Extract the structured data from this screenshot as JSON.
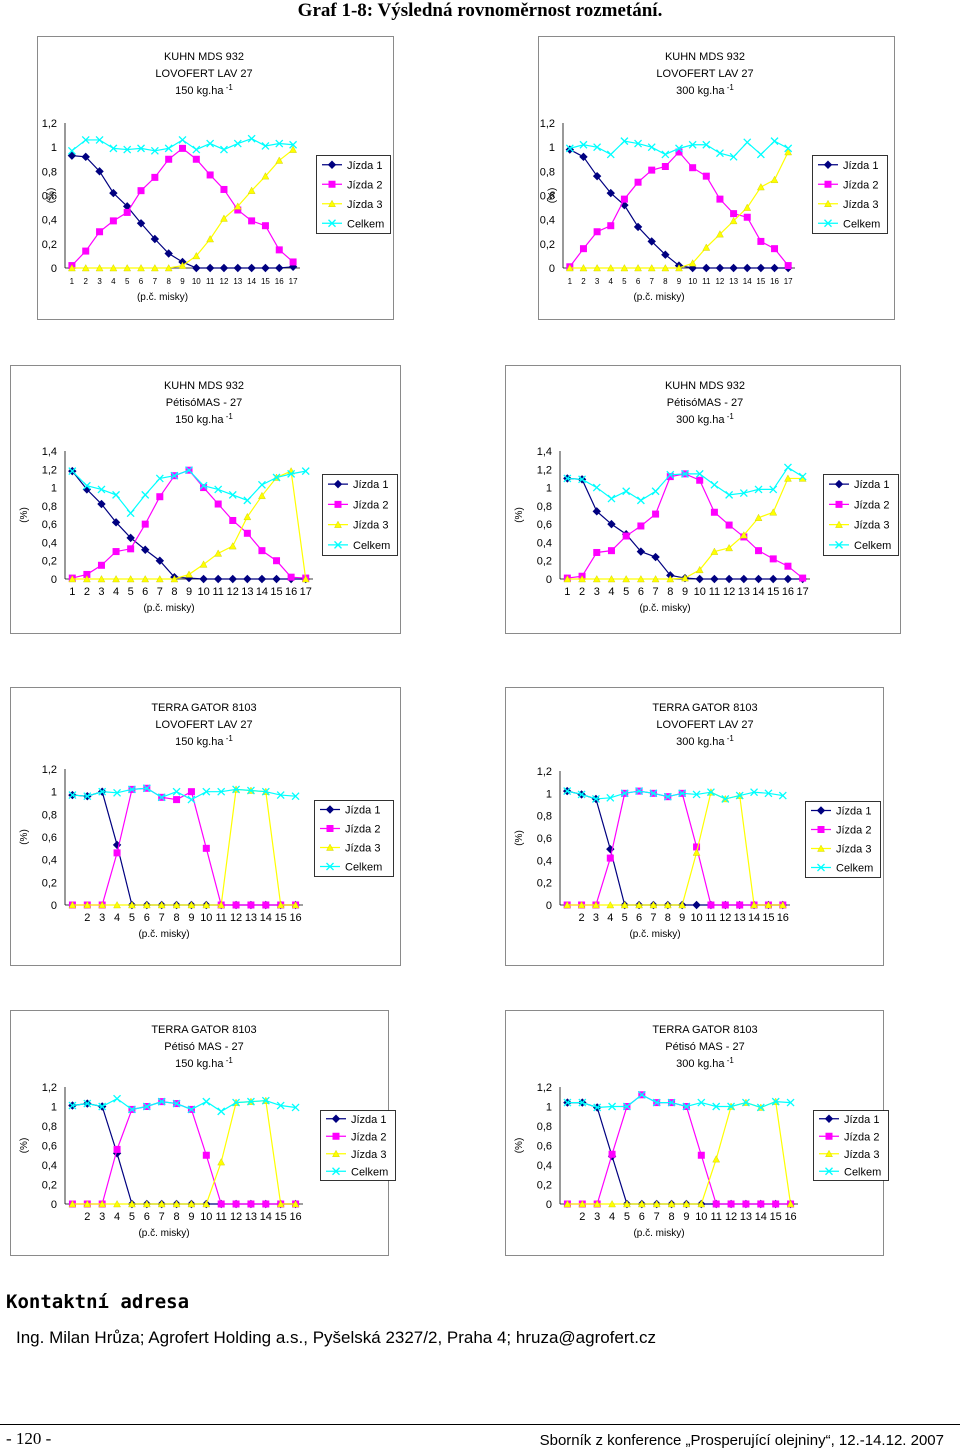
{
  "page_title": "Graf 1-8: Výsledná rovnoměrnost rozmetání.",
  "contact": {
    "heading": "Kontaktní adresa",
    "text": "Ing. Milan Hrůza; Agrofert Holding a.s., Pyšelská 2327/2, Praha 4; hruza@agrofert.cz"
  },
  "footer": {
    "page_number": "- 120 -",
    "conference": "Sborník z konference „Prosperující olejniny“, 12.-14.12. 2007"
  },
  "colors": {
    "Jízda 1": "#000080",
    "Jízda 2": "#ff00ff",
    "Jízda 3": "#ffff00",
    "Celkem": "#00ffff"
  },
  "chart_data": [
    {
      "type": "line",
      "title_lines": [
        "KUHN MDS 932",
        "LOVOFERT LAV  27",
        "150 kg.ha"
      ],
      "title_sup": "-1",
      "ylabel": "(%)",
      "xlabel": "(p.č. misky)",
      "ylim": [
        0,
        1.2
      ],
      "yticks": [
        "0",
        "0,2",
        "0,4",
        "0,6",
        "0,8",
        "1",
        "1,2"
      ],
      "x": [
        "1",
        "2",
        "3",
        "4",
        "5",
        "6",
        "7",
        "8",
        "9",
        "10",
        "11",
        "12",
        "13",
        "14",
        "15",
        "16",
        "17"
      ],
      "legend": [
        "Jízda 1",
        "Jízda 2",
        "Jízda 3",
        "Celkem"
      ],
      "series": [
        {
          "name": "Jízda 1",
          "values": [
            0.93,
            0.92,
            0.8,
            0.62,
            0.51,
            0.37,
            0.24,
            0.12,
            0.05,
            0,
            0,
            0,
            0,
            0,
            0,
            0,
            0.01
          ]
        },
        {
          "name": "Jízda 2",
          "values": [
            0.02,
            0.14,
            0.3,
            0.39,
            0.46,
            0.64,
            0.75,
            0.9,
            0.99,
            0.9,
            0.77,
            0.65,
            0.48,
            0.39,
            0.35,
            0.15,
            0.05
          ]
        },
        {
          "name": "Jízda 3",
          "values": [
            0,
            0,
            0,
            0,
            0,
            0,
            0,
            0,
            0.02,
            0.1,
            0.24,
            0.41,
            0.51,
            0.64,
            0.76,
            0.89,
            0.98
          ]
        },
        {
          "name": "Celkem",
          "values": [
            0.97,
            1.06,
            1.06,
            0.99,
            0.98,
            0.99,
            0.97,
            0.99,
            1.06,
            0.98,
            1.03,
            0.98,
            1.03,
            1.07,
            1.01,
            1.03,
            1.02
          ]
        }
      ]
    },
    {
      "type": "line",
      "title_lines": [
        "KUHN MDS 932",
        "LOVOFERT LAV  27",
        "300 kg.ha"
      ],
      "title_sup": "-1",
      "ylabel": "(%)",
      "xlabel": "(p.č. misky)",
      "ylim": [
        0,
        1.2
      ],
      "yticks": [
        "0",
        "0,2",
        "0,4",
        "0,6",
        "0,8",
        "1",
        "1,2"
      ],
      "x": [
        "1",
        "2",
        "3",
        "4",
        "5",
        "6",
        "7",
        "8",
        "9",
        "10",
        "11",
        "12",
        "13",
        "14",
        "15",
        "16",
        "17"
      ],
      "legend": [
        "Jízda 1",
        "Jízda 2",
        "Jízda 3",
        "Celkem"
      ],
      "series": [
        {
          "name": "Jízda 1",
          "values": [
            0.98,
            0.92,
            0.76,
            0.62,
            0.52,
            0.34,
            0.22,
            0.11,
            0.02,
            0,
            0,
            0,
            0,
            0,
            0,
            0,
            0
          ]
        },
        {
          "name": "Jízda 2",
          "values": [
            0.01,
            0.16,
            0.3,
            0.35,
            0.57,
            0.71,
            0.81,
            0.84,
            0.96,
            0.83,
            0.76,
            0.57,
            0.45,
            0.42,
            0.22,
            0.16,
            0.02
          ]
        },
        {
          "name": "Jízda 3",
          "values": [
            0,
            0,
            0,
            0,
            0,
            0,
            0,
            0,
            0,
            0.04,
            0.17,
            0.28,
            0.39,
            0.5,
            0.67,
            0.73,
            0.96
          ]
        },
        {
          "name": "Celkem",
          "values": [
            0.99,
            1.02,
            1.0,
            0.94,
            1.05,
            1.03,
            1.0,
            0.94,
            0.99,
            1.02,
            1.02,
            0.95,
            0.92,
            1.04,
            0.94,
            1.05,
            0.99
          ]
        }
      ]
    },
    {
      "type": "line",
      "title_lines": [
        "KUHN MDS 932",
        "PétisóMAS - 27",
        "150 kg.ha"
      ],
      "title_sup": "-1",
      "ylabel": "(%)",
      "xlabel": "(p.č. misky)",
      "ylim": [
        0,
        1.4
      ],
      "yticks": [
        "0",
        "0,2",
        "0,4",
        "0,6",
        "0,8",
        "1",
        "1,2",
        "1,4"
      ],
      "x": [
        "1",
        "2",
        "3",
        "4",
        "5",
        "6",
        "7",
        "8",
        "9",
        "10",
        "11",
        "12",
        "13",
        "14",
        "15",
        "16",
        "17"
      ],
      "legend": [
        "Jízda 1",
        "Jízda 2",
        "Jízda 3",
        "Celkem"
      ],
      "series": [
        {
          "name": "Jízda 1",
          "values": [
            1.18,
            0.98,
            0.82,
            0.62,
            0.45,
            0.32,
            0.2,
            0.02,
            0.01,
            0,
            0,
            0,
            0,
            0,
            0,
            0,
            0
          ]
        },
        {
          "name": "Jízda 2",
          "values": [
            0.01,
            0.05,
            0.15,
            0.3,
            0.33,
            0.6,
            0.9,
            1.13,
            1.19,
            1.0,
            0.82,
            0.64,
            0.5,
            0.31,
            0.2,
            0.02,
            0.01
          ]
        },
        {
          "name": "Jízda 3",
          "values": [
            0,
            0,
            0,
            0,
            0,
            0,
            0,
            0,
            0.05,
            0.16,
            0.28,
            0.36,
            0.68,
            0.91,
            1.11,
            1.18,
            0
          ]
        },
        {
          "name": "Celkem",
          "values": [
            1.18,
            1.02,
            0.98,
            0.92,
            0.72,
            0.92,
            1.1,
            1.13,
            1.19,
            1.02,
            0.98,
            0.92,
            0.86,
            1.03,
            1.11,
            1.15,
            1.18
          ]
        }
      ]
    },
    {
      "type": "line",
      "title_lines": [
        "KUHN MDS 932",
        "PétisóMAS - 27",
        "300 kg.ha"
      ],
      "title_sup": "-1",
      "ylabel": "(%)",
      "xlabel": "(p.č. misky)",
      "ylim": [
        0,
        1.4
      ],
      "yticks": [
        "0",
        "0,2",
        "0,4",
        "0,6",
        "0,8",
        "1",
        "1,2",
        "1,4"
      ],
      "x": [
        "1",
        "2",
        "3",
        "4",
        "5",
        "6",
        "7",
        "8",
        "9",
        "10",
        "11",
        "12",
        "13",
        "14",
        "15",
        "16",
        "17"
      ],
      "legend": [
        "Jízda 1",
        "Jízda 2",
        "Jízda 3",
        "Celkem"
      ],
      "series": [
        {
          "name": "Jízda 1",
          "values": [
            1.1,
            1.09,
            0.74,
            0.6,
            0.49,
            0.3,
            0.24,
            0.04,
            0.01,
            0,
            0,
            0,
            0,
            0,
            0,
            0,
            0
          ]
        },
        {
          "name": "Jízda 2",
          "values": [
            0.01,
            0.03,
            0.29,
            0.31,
            0.47,
            0.58,
            0.71,
            1.12,
            1.15,
            1.08,
            0.73,
            0.59,
            0.46,
            0.31,
            0.22,
            0.14,
            0.01
          ]
        },
        {
          "name": "Jízda 3",
          "values": [
            0,
            0,
            0,
            0,
            0,
            0,
            0,
            0,
            0.01,
            0.1,
            0.3,
            0.34,
            0.48,
            0.67,
            0.73,
            1.1,
            1.1
          ]
        },
        {
          "name": "Celkem",
          "values": [
            1.1,
            1.09,
            1.0,
            0.88,
            0.96,
            0.86,
            0.96,
            1.14,
            1.15,
            1.15,
            1.03,
            0.92,
            0.94,
            0.98,
            0.98,
            1.22,
            1.12
          ]
        }
      ]
    },
    {
      "type": "line",
      "title_lines": [
        "TERRA GATOR 8103",
        "LOVOFERT LAV 27",
        "150 kg.ha"
      ],
      "title_sup": "-1",
      "ylabel": "(%)",
      "xlabel": "(p.č. misky)",
      "ylim": [
        0,
        1.2
      ],
      "yticks": [
        "0",
        "0,2",
        "0,4",
        "0,6",
        "0,8",
        "1",
        "1,2"
      ],
      "x": [
        "1",
        "2",
        "3",
        "4",
        "5",
        "6",
        "7",
        "8",
        "9",
        "10",
        "11",
        "12",
        "13",
        "14",
        "15",
        "16"
      ],
      "xtick_labels": [
        "",
        "2",
        "3",
        "4",
        "5",
        "6",
        "7",
        "8",
        "9",
        "10",
        "11",
        "12",
        "13",
        "14",
        "15",
        "16"
      ],
      "legend": [
        "Jízda 1",
        "Jízda 2",
        "Jízda 3",
        "Celkem"
      ],
      "series": [
        {
          "name": "Jízda 1",
          "values": [
            0.97,
            0.96,
            1.0,
            0.53,
            0,
            0,
            0,
            0,
            0,
            0,
            0,
            0,
            0,
            0,
            0,
            0
          ]
        },
        {
          "name": "Jízda 2",
          "values": [
            0,
            0,
            0,
            0.46,
            1.02,
            1.03,
            0.95,
            0.93,
            1.0,
            0.5,
            0,
            0,
            0,
            0,
            0,
            0
          ]
        },
        {
          "name": "Jízda 3",
          "values": [
            0,
            0,
            0,
            0,
            0,
            0,
            0,
            0,
            0,
            0,
            0,
            1.02,
            1.01,
            1.0,
            0,
            0
          ]
        },
        {
          "name": "Celkem",
          "values": [
            0.97,
            0.96,
            1.0,
            0.99,
            1.02,
            1.03,
            0.95,
            1.0,
            0.93,
            1.0,
            1.0,
            1.02,
            1.01,
            1.0,
            0.97,
            0.96
          ]
        }
      ]
    },
    {
      "type": "line",
      "title_lines": [
        "TERRA GATOR 8103",
        "LOVOFERT LAV 27",
        "300 kg.ha"
      ],
      "title_sup": "-1",
      "ylabel": "(%)",
      "xlabel": "(p.č. misky)",
      "ylim": [
        0,
        1.2
      ],
      "yticks": [
        "0",
        "0,2",
        "0,4",
        "0,6",
        "0,8",
        "1",
        "1,2"
      ],
      "x": [
        "1",
        "2",
        "3",
        "4",
        "5",
        "6",
        "7",
        "8",
        "9",
        "10",
        "11",
        "12",
        "13",
        "14",
        "15",
        "16"
      ],
      "xtick_labels": [
        "",
        "2",
        "3",
        "4",
        "5",
        "6",
        "7",
        "8",
        "9",
        "10",
        "11",
        "12",
        "13",
        "14",
        "15",
        "16"
      ],
      "legend": [
        "Jízda 1",
        "Jízda 2",
        "Jízda 3",
        "Celkem"
      ],
      "series": [
        {
          "name": "Jízda 1",
          "values": [
            1.02,
            0.99,
            0.95,
            0.5,
            0,
            0,
            0,
            0,
            0,
            0,
            0,
            0,
            0,
            0,
            0,
            0
          ]
        },
        {
          "name": "Jízda 2",
          "values": [
            0,
            0,
            0,
            0.42,
            1.0,
            1.02,
            1.0,
            0.97,
            1.0,
            0.52,
            0,
            0,
            0,
            0,
            0,
            0
          ]
        },
        {
          "name": "Jízda 3",
          "values": [
            0,
            0,
            0,
            0,
            0,
            0,
            0,
            0,
            0,
            0.47,
            1.01,
            0.95,
            0.98,
            0,
            0,
            0
          ]
        },
        {
          "name": "Celkem",
          "values": [
            1.02,
            0.99,
            0.95,
            0.96,
            1.0,
            1.02,
            1.0,
            0.97,
            1.0,
            0.99,
            1.01,
            0.95,
            0.98,
            1.01,
            1.0,
            0.98
          ]
        }
      ]
    },
    {
      "type": "line",
      "title_lines": [
        "TERRA GATOR 8103",
        "Pétisó MAS - 27",
        "150 kg.ha"
      ],
      "title_sup": "-1",
      "ylabel": "(%)",
      "xlabel": "(p.č. misky)",
      "ylim": [
        0,
        1.2
      ],
      "yticks": [
        "0",
        "0,2",
        "0,4",
        "0,6",
        "0,8",
        "1",
        "1,2"
      ],
      "x": [
        "1",
        "2",
        "3",
        "4",
        "5",
        "6",
        "7",
        "8",
        "9",
        "10",
        "11",
        "12",
        "13",
        "14",
        "15",
        "16"
      ],
      "xtick_labels": [
        "",
        "2",
        "3",
        "4",
        "5",
        "6",
        "7",
        "8",
        "9",
        "10",
        "11",
        "12",
        "13",
        "14",
        "15",
        "16"
      ],
      "legend": [
        "Jízda 1",
        "Jízda 2",
        "Jízda 3",
        "Celkem"
      ],
      "series": [
        {
          "name": "Jízda 1",
          "values": [
            1.01,
            1.03,
            1.0,
            0.52,
            0,
            0,
            0,
            0,
            0,
            0,
            0,
            0,
            0,
            0,
            0,
            0
          ]
        },
        {
          "name": "Jízda 2",
          "values": [
            0,
            0,
            0,
            0.56,
            0.97,
            1.0,
            1.05,
            1.03,
            0.97,
            0.5,
            0,
            0,
            0,
            0,
            0,
            0
          ]
        },
        {
          "name": "Jízda 3",
          "values": [
            0,
            0,
            0,
            0,
            0,
            0,
            0,
            0,
            0,
            0,
            0.43,
            1.04,
            1.05,
            1.06,
            0,
            0
          ]
        },
        {
          "name": "Celkem",
          "values": [
            1.01,
            1.03,
            1.0,
            1.08,
            0.97,
            1.0,
            1.05,
            1.03,
            0.97,
            1.05,
            0.95,
            1.04,
            1.05,
            1.06,
            1.01,
            0.99
          ]
        }
      ]
    },
    {
      "type": "line",
      "title_lines": [
        "TERRA GATOR 8103",
        "Pétisó MAS - 27",
        "300 kg.ha"
      ],
      "title_sup": "-1",
      "ylabel": "(%)",
      "xlabel": "(p.č. misky)",
      "ylim": [
        0,
        1.2
      ],
      "yticks": [
        "0",
        "0,2",
        "0,4",
        "0,6",
        "0,8",
        "1",
        "1,2"
      ],
      "x": [
        "1",
        "2",
        "3",
        "4",
        "5",
        "6",
        "7",
        "8",
        "9",
        "10",
        "11",
        "12",
        "13",
        "14",
        "15",
        "16"
      ],
      "xtick_labels": [
        "",
        "2",
        "3",
        "4",
        "5",
        "6",
        "7",
        "8",
        "9",
        "10",
        "11",
        "12",
        "13",
        "14",
        "15",
        "16"
      ],
      "legend": [
        "Jízda 1",
        "Jízda 2",
        "Jízda 3",
        "Celkem"
      ],
      "series": [
        {
          "name": "Jízda 1",
          "values": [
            1.04,
            1.04,
            0.99,
            0.49,
            0,
            0,
            0,
            0,
            0,
            0,
            0,
            0,
            0,
            0,
            0,
            0
          ]
        },
        {
          "name": "Jízda 2",
          "values": [
            0,
            0,
            0,
            0.51,
            1.0,
            1.12,
            1.04,
            1.04,
            1.0,
            0.5,
            0,
            0,
            0,
            0,
            0,
            0
          ]
        },
        {
          "name": "Jízda 3",
          "values": [
            0,
            0,
            0,
            0,
            0,
            0,
            0,
            0,
            0,
            0,
            0.46,
            1.0,
            1.04,
            0.99,
            1.05,
            0
          ]
        },
        {
          "name": "Celkem",
          "values": [
            1.04,
            1.04,
            0.99,
            1.0,
            1.0,
            1.12,
            1.04,
            1.04,
            1.0,
            1.04,
            1.0,
            1.0,
            1.04,
            0.99,
            1.05,
            1.04
          ]
        }
      ]
    }
  ]
}
